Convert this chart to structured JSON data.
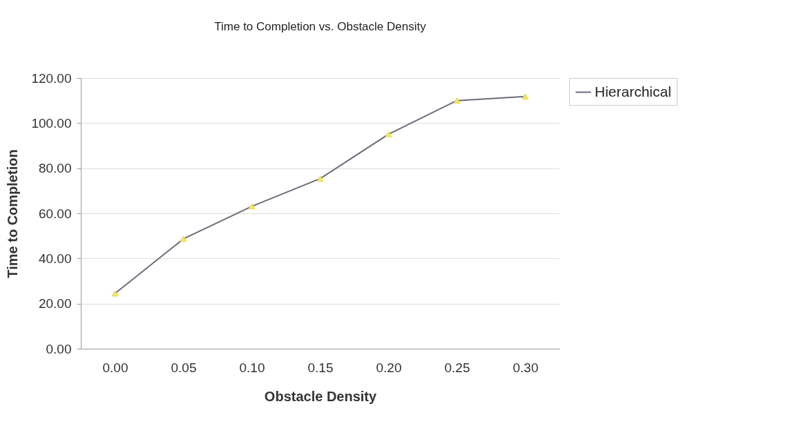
{
  "chart_data": {
    "type": "line",
    "title": "Time to Completion vs. Obstacle Density",
    "xlabel": "Obstacle Density",
    "ylabel": "Time to Completion",
    "categories": [
      "0.00",
      "0.05",
      "0.10",
      "0.15",
      "0.20",
      "0.25",
      "0.30"
    ],
    "series": [
      {
        "name": "Hierarchical",
        "color": "#6b6b7b",
        "values": [
          24.5,
          48.7,
          63.1,
          75.4,
          95.1,
          110.0,
          111.8
        ]
      }
    ],
    "ylim": [
      0,
      120
    ],
    "yticks": [
      {
        "value": 0,
        "label": "0.00"
      },
      {
        "value": 20,
        "label": "20.00"
      },
      {
        "value": 40,
        "label": "40.00"
      },
      {
        "value": 60,
        "label": "60.00"
      },
      {
        "value": 80,
        "label": "80.00"
      },
      {
        "value": 100,
        "label": "100.00"
      },
      {
        "value": 120,
        "label": "120.00"
      }
    ],
    "grid": "y",
    "legend": "right",
    "marker": "triangle",
    "line_style": "solid"
  }
}
